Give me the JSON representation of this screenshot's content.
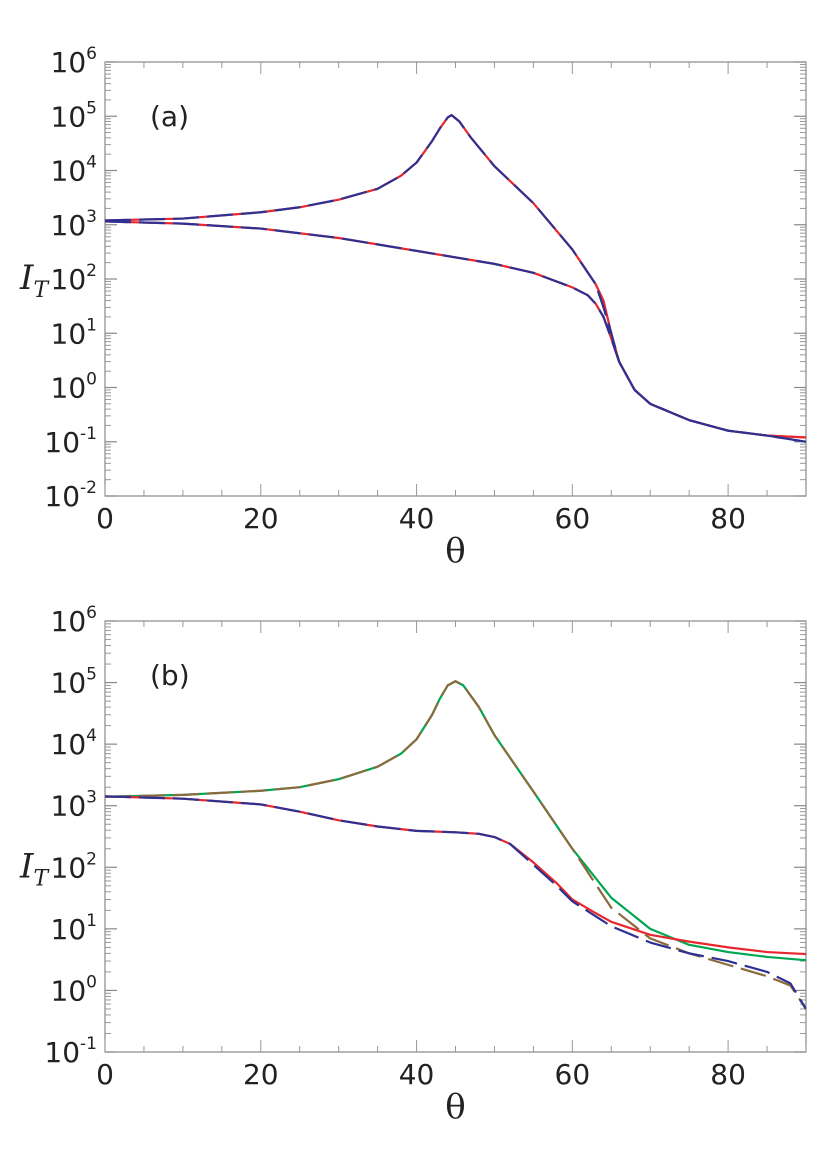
{
  "chart_data": [
    {
      "type": "line",
      "panel_label": "(a)",
      "xlabel": "θ",
      "ylabel": "I",
      "ylabel_sub": "T",
      "yscale": "log",
      "xlim": [
        0,
        90
      ],
      "ylim_exp": [
        -2,
        6
      ],
      "x_ticks": [
        0,
        20,
        40,
        60,
        80
      ],
      "y_ticks": [
        "-2",
        "-1",
        "0",
        "1",
        "2",
        "3",
        "4",
        "5",
        "6"
      ],
      "tick_base": "10",
      "series": [
        {
          "name": "upper-red",
          "color": "#e8262d",
          "dashed": false,
          "width": 2.2,
          "points": [
            [
              0,
              1200
            ],
            [
              10,
              1300
            ],
            [
              20,
              1700
            ],
            [
              25,
              2100
            ],
            [
              30,
              2900
            ],
            [
              35,
              4600
            ],
            [
              38,
              8000
            ],
            [
              40,
              14000
            ],
            [
              42,
              35000
            ],
            [
              43,
              60000
            ],
            [
              44,
              95000
            ],
            [
              44.5,
              105000
            ],
            [
              45.5,
              80000
            ],
            [
              47,
              40000
            ],
            [
              50,
              12000
            ],
            [
              55,
              2500
            ],
            [
              60,
              350
            ],
            [
              63,
              80
            ],
            [
              64,
              40
            ],
            [
              65,
              10
            ],
            [
              66,
              3
            ],
            [
              68,
              0.9
            ],
            [
              70,
              0.5
            ],
            [
              75,
              0.25
            ],
            [
              80,
              0.16
            ],
            [
              85,
              0.13
            ],
            [
              90,
              0.12
            ]
          ]
        },
        {
          "name": "upper-blue",
          "color": "#2e3192",
          "dashed": true,
          "width": 2.2,
          "points": [
            [
              0,
              1200
            ],
            [
              10,
              1300
            ],
            [
              20,
              1700
            ],
            [
              25,
              2100
            ],
            [
              30,
              2900
            ],
            [
              35,
              4600
            ],
            [
              38,
              8000
            ],
            [
              40,
              14000
            ],
            [
              42,
              35000
            ],
            [
              43,
              60000
            ],
            [
              44,
              95000
            ],
            [
              44.5,
              105000
            ],
            [
              45.5,
              80000
            ],
            [
              47,
              40000
            ],
            [
              50,
              12000
            ],
            [
              55,
              2500
            ],
            [
              60,
              350
            ],
            [
              63,
              80
            ],
            [
              64,
              30
            ],
            [
              65,
              10
            ],
            [
              66,
              3
            ],
            [
              68,
              0.9
            ],
            [
              70,
              0.5
            ],
            [
              75,
              0.25
            ],
            [
              80,
              0.16
            ],
            [
              85,
              0.13
            ],
            [
              90,
              0.1
            ]
          ]
        },
        {
          "name": "lower-red",
          "color": "#e8262d",
          "dashed": false,
          "width": 2.2,
          "points": [
            [
              0,
              1150
            ],
            [
              10,
              1050
            ],
            [
              20,
              850
            ],
            [
              30,
              570
            ],
            [
              40,
              330
            ],
            [
              50,
              190
            ],
            [
              55,
              130
            ],
            [
              60,
              70
            ],
            [
              62,
              50
            ],
            [
              63,
              35
            ],
            [
              64,
              20
            ],
            [
              65,
              8
            ],
            [
              66,
              3
            ],
            [
              68,
              0.9
            ],
            [
              70,
              0.5
            ],
            [
              75,
              0.25
            ],
            [
              80,
              0.16
            ],
            [
              85,
              0.13
            ],
            [
              90,
              0.12
            ]
          ]
        },
        {
          "name": "lower-blue",
          "color": "#2e3192",
          "dashed": true,
          "width": 2.2,
          "points": [
            [
              0,
              1150
            ],
            [
              10,
              1050
            ],
            [
              20,
              850
            ],
            [
              30,
              570
            ],
            [
              40,
              330
            ],
            [
              50,
              190
            ],
            [
              55,
              130
            ],
            [
              60,
              70
            ],
            [
              62,
              50
            ],
            [
              63,
              35
            ],
            [
              64,
              20
            ],
            [
              65,
              8
            ],
            [
              66,
              3
            ],
            [
              68,
              0.9
            ],
            [
              70,
              0.5
            ],
            [
              75,
              0.25
            ],
            [
              80,
              0.16
            ],
            [
              85,
              0.13
            ],
            [
              90,
              0.1
            ]
          ]
        }
      ]
    },
    {
      "type": "line",
      "panel_label": "(b)",
      "xlabel": "θ",
      "ylabel": "I",
      "ylabel_sub": "T",
      "yscale": "log",
      "xlim": [
        0,
        90
      ],
      "ylim_exp": [
        -1,
        6
      ],
      "x_ticks": [
        0,
        20,
        40,
        60,
        80
      ],
      "y_ticks": [
        "-1",
        "0",
        "1",
        "2",
        "3",
        "4",
        "5",
        "6"
      ],
      "tick_base": "10",
      "series": [
        {
          "name": "upper-green",
          "color": "#00a651",
          "dashed": false,
          "width": 2.2,
          "points": [
            [
              0,
              1400
            ],
            [
              10,
              1500
            ],
            [
              20,
              1750
            ],
            [
              25,
              2000
            ],
            [
              30,
              2700
            ],
            [
              35,
              4300
            ],
            [
              38,
              7000
            ],
            [
              40,
              12000
            ],
            [
              42,
              30000
            ],
            [
              43,
              55000
            ],
            [
              44,
              90000
            ],
            [
              45,
              105000
            ],
            [
              46,
              90000
            ],
            [
              48,
              40000
            ],
            [
              50,
              14000
            ],
            [
              55,
              1700
            ],
            [
              60,
              200
            ],
            [
              65,
              32
            ],
            [
              70,
              10
            ],
            [
              75,
              5.5
            ],
            [
              80,
              4.2
            ],
            [
              85,
              3.5
            ],
            [
              90,
              3.1
            ]
          ]
        },
        {
          "name": "upper-brown",
          "color": "#8b6b3d",
          "dashed": true,
          "width": 2.2,
          "points": [
            [
              0,
              1400
            ],
            [
              10,
              1500
            ],
            [
              20,
              1750
            ],
            [
              25,
              2000
            ],
            [
              30,
              2700
            ],
            [
              35,
              4300
            ],
            [
              38,
              7000
            ],
            [
              40,
              12000
            ],
            [
              42,
              30000
            ],
            [
              43,
              55000
            ],
            [
              44,
              90000
            ],
            [
              45,
              105000
            ],
            [
              46,
              90000
            ],
            [
              48,
              40000
            ],
            [
              50,
              14000
            ],
            [
              55,
              1700
            ],
            [
              60,
              200
            ],
            [
              65,
              22
            ],
            [
              70,
              7
            ],
            [
              75,
              4
            ],
            [
              80,
              2.6
            ],
            [
              85,
              1.7
            ],
            [
              88,
              1.2
            ],
            [
              90,
              0.5
            ]
          ]
        },
        {
          "name": "lower-red",
          "color": "#e8262d",
          "dashed": false,
          "width": 2.2,
          "points": [
            [
              0,
              1420
            ],
            [
              10,
              1300
            ],
            [
              20,
              1050
            ],
            [
              25,
              800
            ],
            [
              30,
              580
            ],
            [
              35,
              460
            ],
            [
              40,
              390
            ],
            [
              45,
              370
            ],
            [
              48,
              350
            ],
            [
              50,
              310
            ],
            [
              52,
              240
            ],
            [
              55,
              120
            ],
            [
              58,
              55
            ],
            [
              60,
              30
            ],
            [
              63,
              18
            ],
            [
              65,
              13
            ],
            [
              70,
              8
            ],
            [
              75,
              6.2
            ],
            [
              80,
              5
            ],
            [
              85,
              4.2
            ],
            [
              90,
              3.9
            ]
          ]
        },
        {
          "name": "lower-blue",
          "color": "#2e3192",
          "dashed": true,
          "width": 2.2,
          "points": [
            [
              0,
              1420
            ],
            [
              10,
              1300
            ],
            [
              20,
              1050
            ],
            [
              25,
              800
            ],
            [
              30,
              580
            ],
            [
              35,
              460
            ],
            [
              40,
              390
            ],
            [
              45,
              370
            ],
            [
              48,
              350
            ],
            [
              50,
              310
            ],
            [
              52,
              240
            ],
            [
              55,
              110
            ],
            [
              58,
              50
            ],
            [
              60,
              28
            ],
            [
              63,
              16
            ],
            [
              65,
              11
            ],
            [
              70,
              6
            ],
            [
              75,
              4
            ],
            [
              80,
              3
            ],
            [
              85,
              2
            ],
            [
              88,
              1.3
            ],
            [
              90,
              0.5
            ]
          ]
        }
      ]
    }
  ]
}
